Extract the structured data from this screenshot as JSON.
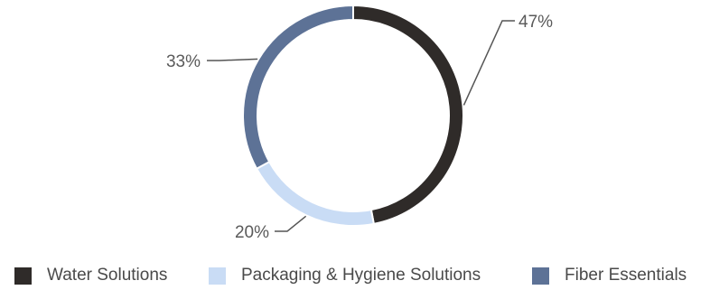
{
  "chart_data": {
    "type": "pie",
    "donut": true,
    "title": "",
    "categories": [
      "Water Solutions",
      "Packaging & Hygiene Solutions",
      "Fiber Essentials"
    ],
    "values": [
      47,
      20,
      33
    ],
    "value_labels": [
      "47%",
      "20%",
      "33%"
    ],
    "colors": [
      "#2f2b29",
      "#c9dcf5",
      "#5d7296"
    ],
    "legend_position": "bottom"
  }
}
